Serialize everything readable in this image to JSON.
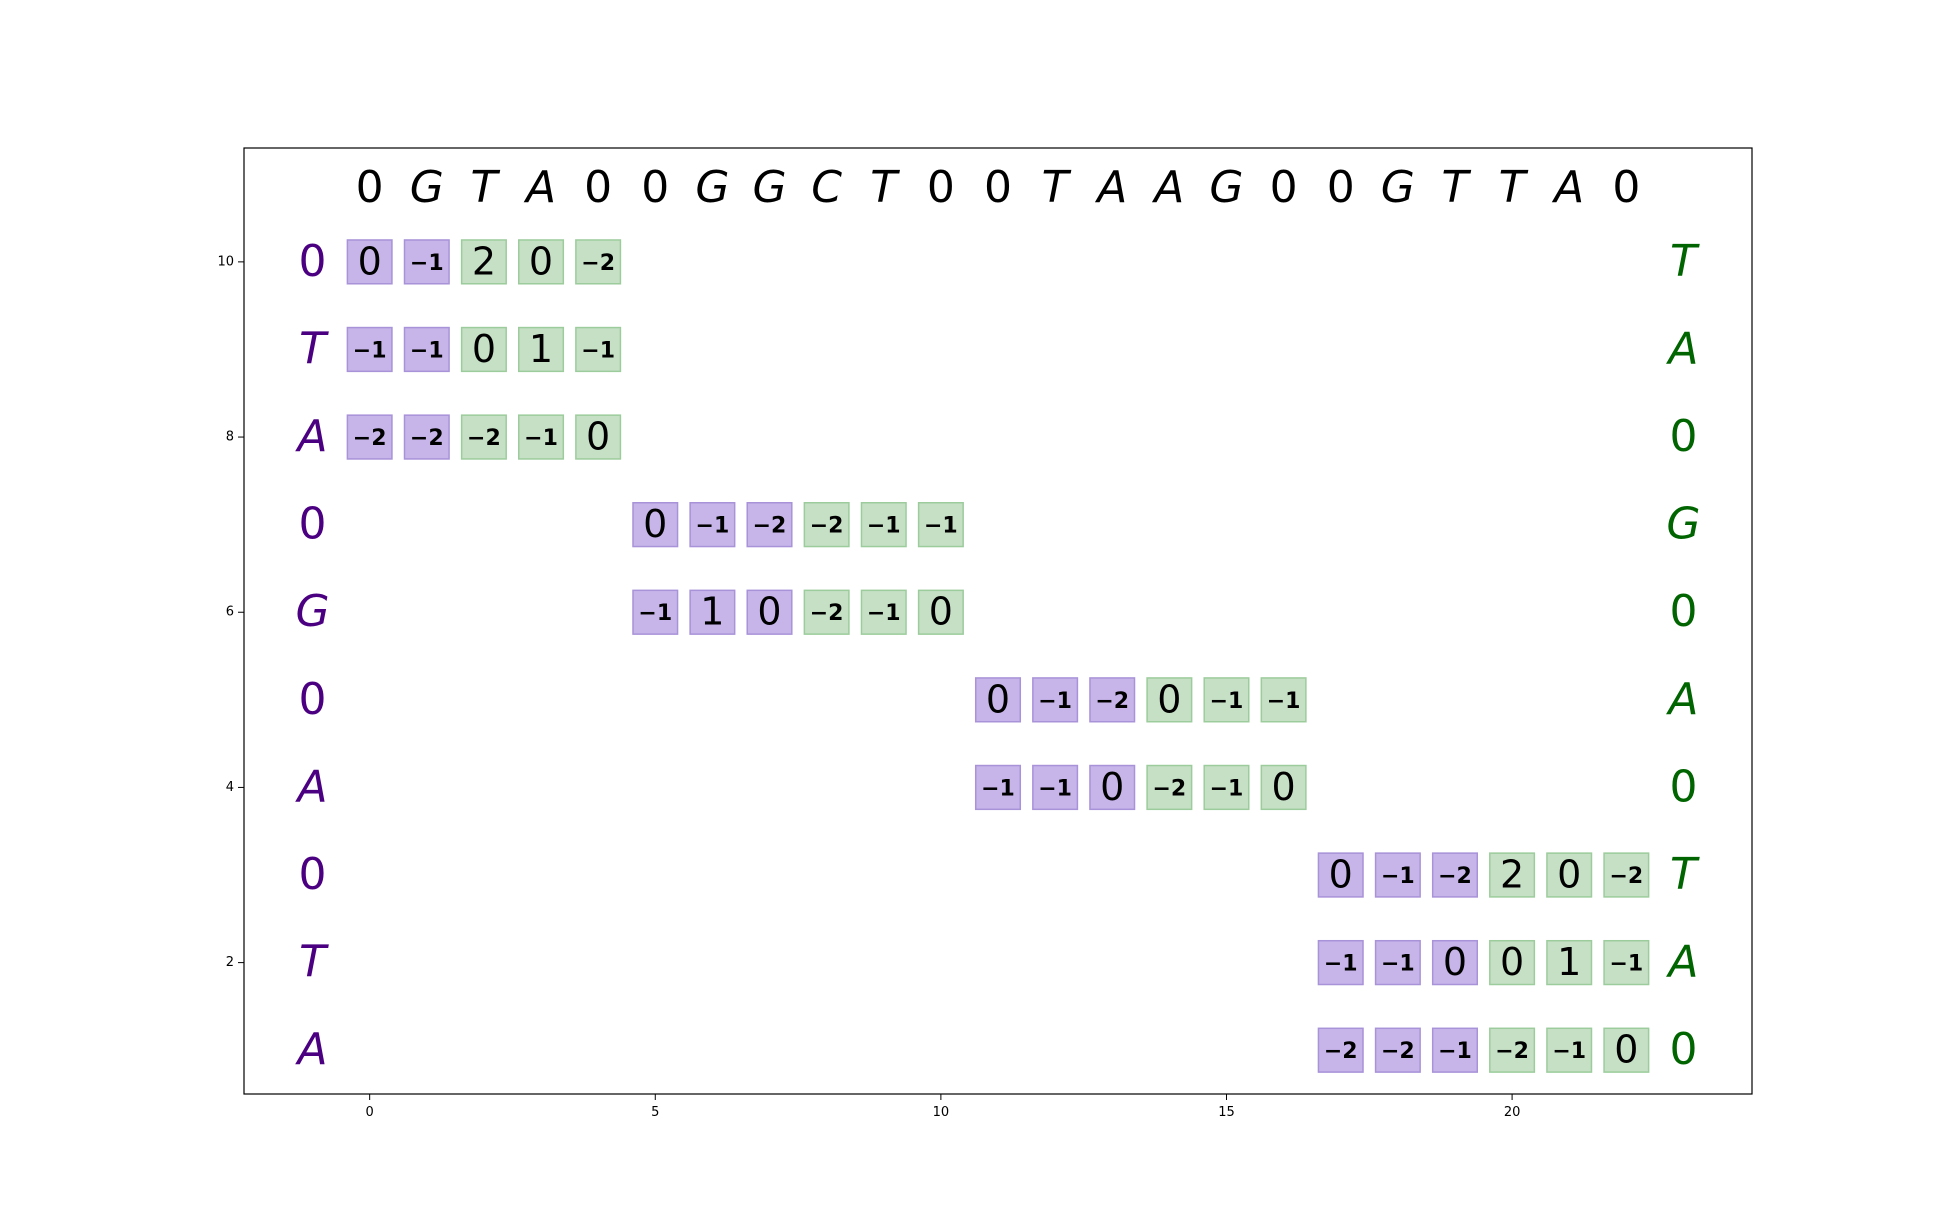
{
  "colors": {
    "left_label": "#4b0082",
    "right_label": "#006400",
    "top_label": "#000000",
    "purple_fill": "#c7b5ea",
    "purple_edge": "#a892d8",
    "green_fill": "#c6e0c6",
    "green_edge": "#9ccc9c"
  },
  "top_sequence": [
    "0",
    "G",
    "T",
    "A",
    "0",
    "0",
    "G",
    "G",
    "C",
    "T",
    "0",
    "0",
    "T",
    "A",
    "A",
    "G",
    "0",
    "0",
    "G",
    "T",
    "T",
    "A",
    "0"
  ],
  "left_sequence": [
    "0",
    "T",
    "A",
    "0",
    "G",
    "0",
    "A",
    "0",
    "T",
    "A"
  ],
  "right_sequence": [
    "T",
    "A",
    "0",
    "G",
    "0",
    "A",
    "0",
    "T",
    "A",
    "0"
  ],
  "chart_data": {
    "type": "heatmap",
    "x_ticks": [
      0,
      5,
      10,
      15,
      20
    ],
    "y_ticks": [
      10,
      8,
      6,
      4,
      2
    ],
    "xlim": [
      -2.2,
      24.2
    ],
    "ylim": [
      0.5,
      11.3
    ],
    "blocks": [
      {
        "x_start": 0,
        "purple_cols": 2,
        "rows": [
          {
            "y": 10,
            "values": [
              "0",
              "−1",
              "2",
              "0",
              "−2"
            ]
          },
          {
            "y": 9,
            "values": [
              "−1",
              "−1",
              "0",
              "1",
              "−1"
            ]
          },
          {
            "y": 8,
            "values": [
              "−2",
              "−2",
              "−2",
              "−1",
              "0"
            ]
          }
        ]
      },
      {
        "x_start": 5,
        "purple_cols": 3,
        "rows": [
          {
            "y": 7,
            "values": [
              "0",
              "−1",
              "−2",
              "−2",
              "−1",
              "−1"
            ]
          },
          {
            "y": 6,
            "values": [
              "−1",
              "1",
              "0",
              "−2",
              "−1",
              "0"
            ]
          }
        ]
      },
      {
        "x_start": 11,
        "purple_cols": 3,
        "rows": [
          {
            "y": 5,
            "values": [
              "0",
              "−1",
              "−2",
              "0",
              "−1",
              "−1"
            ]
          },
          {
            "y": 4,
            "values": [
              "−1",
              "−1",
              "0",
              "−2",
              "−1",
              "0"
            ]
          }
        ]
      },
      {
        "x_start": 17,
        "purple_cols": 3,
        "rows": [
          {
            "y": 3,
            "values": [
              "0",
              "−1",
              "−2",
              "2",
              "0",
              "−2"
            ]
          },
          {
            "y": 2,
            "values": [
              "−1",
              "−1",
              "0",
              "0",
              "1",
              "−1"
            ]
          },
          {
            "y": 1,
            "values": [
              "−2",
              "−2",
              "−1",
              "−2",
              "−1",
              "0"
            ]
          }
        ]
      }
    ]
  }
}
